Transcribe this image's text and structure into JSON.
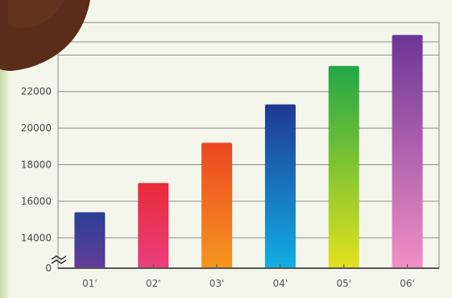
{
  "chart_data": {
    "type": "bar",
    "title": "",
    "xlabel": "",
    "ylabel": "",
    "categories": [
      "01'",
      "02'",
      "03'",
      "04'",
      "05'",
      "06'"
    ],
    "values": [
      15400,
      17000,
      19200,
      21300,
      23400,
      25100
    ],
    "ylim": [
      13000,
      25600
    ],
    "yticks": [
      "14000",
      "16000",
      "18000",
      "20000",
      "22000",
      "24000"
    ],
    "ytick_values": [
      14000,
      16000,
      18000,
      20000,
      22000,
      24000
    ],
    "axis_break": true,
    "zero_label": "0",
    "grid": true,
    "bar_gradients": [
      [
        "#2a3f95",
        "#623c9a"
      ],
      [
        "#e82a3a",
        "#ea3f7e"
      ],
      [
        "#ec4623",
        "#f6961e"
      ],
      [
        "#1f3894",
        "#12aee4"
      ],
      [
        "#20a747",
        "#e3e21e"
      ],
      [
        "#6c3596",
        "#f28fc7"
      ]
    ]
  }
}
